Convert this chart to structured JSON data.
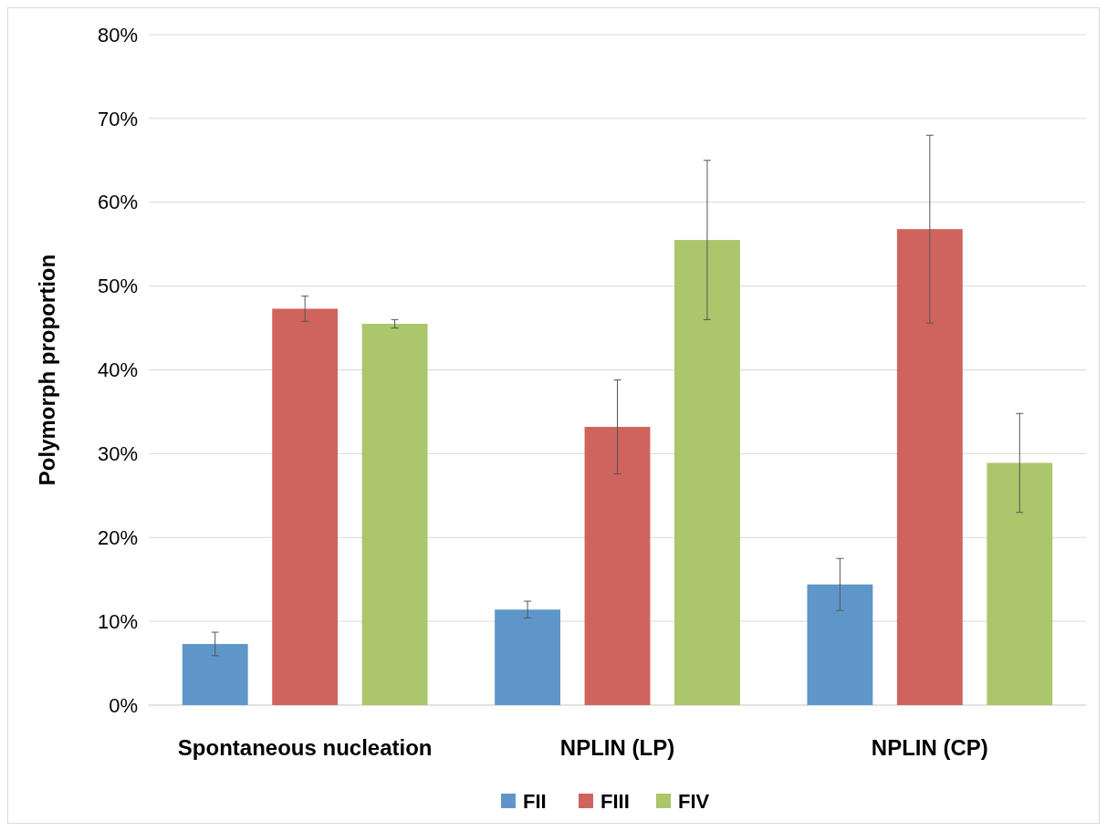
{
  "chart_data": {
    "type": "bar",
    "ylabel": "Polymorph proportion",
    "categories": [
      "Spontaneous nucleation",
      "NPLIN (LP)",
      "NPLIN (CP)"
    ],
    "series": [
      {
        "name": "FII",
        "color": "#5f96c9",
        "values": [
          7.3,
          11.4,
          14.4
        ],
        "errors": [
          1.4,
          1.0,
          3.1
        ]
      },
      {
        "name": "FIII",
        "color": "#cf645e",
        "values": [
          47.3,
          33.2,
          56.8
        ],
        "errors": [
          1.5,
          5.6,
          11.2
        ]
      },
      {
        "name": "FIV",
        "color": "#abc66b",
        "values": [
          45.5,
          55.5,
          28.9
        ],
        "errors": [
          0.5,
          9.5,
          5.9
        ]
      }
    ],
    "ylim": [
      0,
      80
    ],
    "yticks": [
      {
        "value": 0,
        "label": "0%"
      },
      {
        "value": 10,
        "label": "10%"
      },
      {
        "value": 20,
        "label": "20%"
      },
      {
        "value": 30,
        "label": "30%"
      },
      {
        "value": 40,
        "label": "40%"
      },
      {
        "value": 50,
        "label": "50%"
      },
      {
        "value": 60,
        "label": "60%"
      },
      {
        "value": 70,
        "label": "70%"
      },
      {
        "value": 80,
        "label": "80%"
      }
    ],
    "grid": "y",
    "legend": "bottom"
  }
}
